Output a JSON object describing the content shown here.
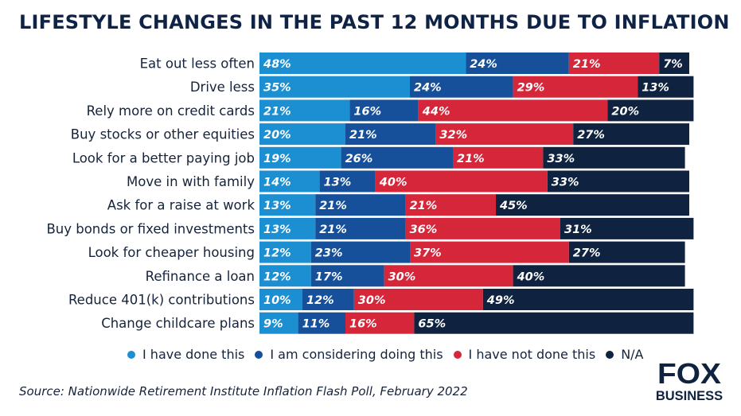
{
  "header": {
    "title": "LIFESTYLE CHANGES IN THE PAST 12 MONTHS DUE TO INFLATION"
  },
  "chart_data": {
    "type": "bar",
    "orientation": "horizontal",
    "stacked": true,
    "title": "LIFESTYLE CHANGES IN THE PAST 12 MONTHS DUE TO INFLATION",
    "categories": [
      "Eat out less often",
      "Drive less",
      "Rely more on credit cards",
      "Buy stocks or other equities",
      "Look for a better paying job",
      "Move in with family",
      "Ask for a raise at work",
      "Buy bonds or fixed investments",
      "Look for cheaper housing",
      "Refinance a loan",
      "Reduce 401(k) contributions",
      "Change childcare plans"
    ],
    "series": [
      {
        "name": "I have done this",
        "color": "#1b8fd1",
        "values": [
          48,
          35,
          21,
          20,
          19,
          14,
          13,
          13,
          12,
          12,
          10,
          9
        ]
      },
      {
        "name": "I am considering doing this",
        "color": "#16509a",
        "values": [
          24,
          24,
          16,
          21,
          26,
          13,
          21,
          21,
          23,
          17,
          12,
          11
        ]
      },
      {
        "name": "I have not done this",
        "color": "#d6263a",
        "values": [
          21,
          29,
          44,
          32,
          21,
          40,
          21,
          36,
          37,
          30,
          30,
          16
        ]
      },
      {
        "name": "N/A",
        "color": "#0f2240",
        "values": [
          7,
          13,
          20,
          27,
          33,
          33,
          45,
          31,
          27,
          40,
          49,
          65
        ]
      }
    ],
    "value_suffix": "%",
    "legend_position": "bottom",
    "grid": false
  },
  "legend": {
    "items": [
      {
        "label": "I have done this",
        "color": "#1b8fd1"
      },
      {
        "label": "I am considering doing this",
        "color": "#16509a"
      },
      {
        "label": "I have not done this",
        "color": "#d6263a"
      },
      {
        "label": "N/A",
        "color": "#0f2240"
      }
    ]
  },
  "footer": {
    "source": "Source:  Nationwide Retirement Institute Inflation Flash Poll, February 2022"
  },
  "logo": {
    "line1": "FOX",
    "line2": "BUSINESS"
  }
}
